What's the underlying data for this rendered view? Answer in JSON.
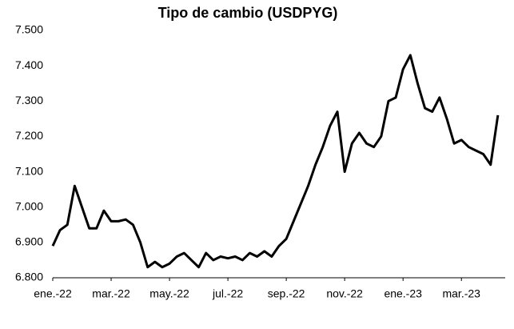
{
  "chart_data": {
    "type": "line",
    "title": "Tipo de cambio (USDPYG)",
    "categories": [
      "ene.-22",
      null,
      null,
      null,
      null,
      null,
      null,
      null,
      "mar.-22",
      null,
      null,
      null,
      null,
      null,
      null,
      null,
      "may.-22",
      null,
      null,
      null,
      null,
      null,
      null,
      null,
      "jul.-22",
      null,
      null,
      null,
      null,
      null,
      null,
      null,
      "sep.-22",
      null,
      null,
      null,
      null,
      null,
      null,
      null,
      "nov.-22",
      null,
      null,
      null,
      null,
      null,
      null,
      null,
      "ene.-23",
      null,
      null,
      null,
      null,
      null,
      null,
      null,
      "mar.-23",
      null,
      null,
      null,
      null,
      null
    ],
    "values": [
      6890,
      6935,
      6950,
      7060,
      7000,
      6940,
      6940,
      6990,
      6960,
      6960,
      6965,
      6950,
      6900,
      6830,
      6845,
      6830,
      6840,
      6860,
      6870,
      6850,
      6830,
      6870,
      6850,
      6860,
      6855,
      6860,
      6850,
      6870,
      6860,
      6875,
      6860,
      6890,
      6910,
      6960,
      7010,
      7060,
      7120,
      7170,
      7230,
      7270,
      7100,
      7180,
      7210,
      7180,
      7170,
      7200,
      7300,
      7310,
      7390,
      7430,
      7350,
      7280,
      7270,
      7310,
      7250,
      7180,
      7190,
      7170,
      7160,
      7150,
      7120,
      7260
    ],
    "color": "#000000",
    "ylim": [
      6800,
      7500
    ],
    "yticks": [
      {
        "value": 6800,
        "label": "6.800"
      },
      {
        "value": 6900,
        "label": "6.900"
      },
      {
        "value": 7000,
        "label": "7.000"
      },
      {
        "value": 7100,
        "label": "7.100"
      },
      {
        "value": 7200,
        "label": "7.200"
      },
      {
        "value": 7300,
        "label": "7.300"
      },
      {
        "value": 7400,
        "label": "7.400"
      },
      {
        "value": 7500,
        "label": "7.500"
      }
    ]
  }
}
